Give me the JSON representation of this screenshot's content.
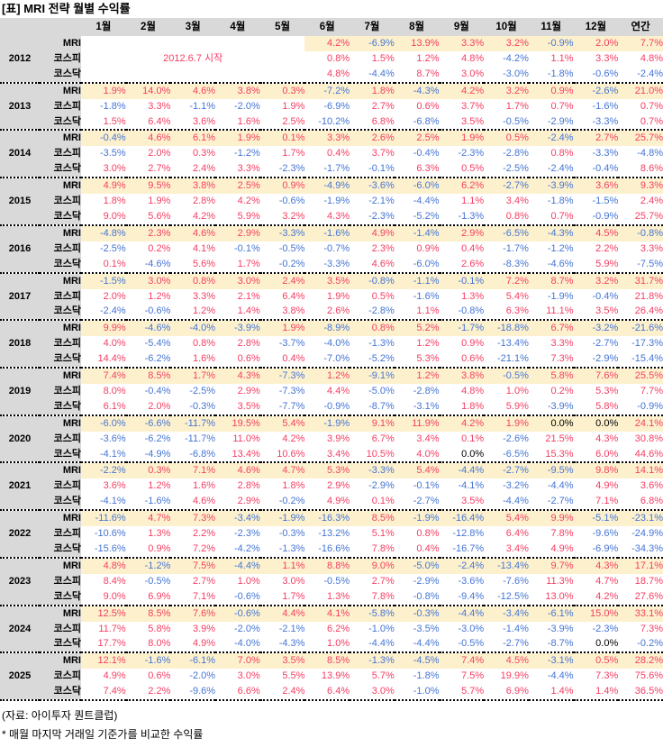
{
  "title": "[표] MRI 전략 월별 수익률",
  "colors": {
    "positive": "#f53e63",
    "negative": "#4575d5",
    "zero": "#000000",
    "header_bg": "#d9d9d9",
    "mri_row_bg": "#fdf1cd"
  },
  "footer": {
    "source": "(자료: 아이투자 퀀트클럽)",
    "note": "* 매월 마지막 거래일 기준가를 비교한 수익률"
  },
  "chart_data": {
    "type": "table",
    "title": "[표] MRI 전략 월별 수익률",
    "columns": [
      "1월",
      "2월",
      "3월",
      "4월",
      "5월",
      "6월",
      "7월",
      "8월",
      "9월",
      "10월",
      "11월",
      "12월",
      "연간"
    ],
    "row_labels": [
      "MRI",
      "코스피",
      "코스닥"
    ],
    "start_note": "2012.6.7 시작",
    "years": [
      {
        "year": "2012",
        "rows": [
          {
            "label": "MRI",
            "values": [
              "",
              "",
              "",
              "",
              "",
              "4.2%",
              "-6.9%",
              "13.9%",
              "3.3%",
              "3.2%",
              "-0.9%",
              "2.0%",
              "7.7%"
            ]
          },
          {
            "label": "코스피",
            "start_note": {
              "text": "2012.6.7 시작",
              "span": 5
            },
            "values": [
              "",
              "",
              "",
              "",
              "",
              "0.8%",
              "1.5%",
              "1.2%",
              "4.8%",
              "-4.2%",
              "1.1%",
              "3.3%",
              "4.8%"
            ]
          },
          {
            "label": "코스닥",
            "values": [
              "",
              "",
              "",
              "",
              "",
              "4.8%",
              "-4.4%",
              "8.7%",
              "3.0%",
              "-3.0%",
              "-1.8%",
              "-0.6%",
              "-2.4%"
            ]
          }
        ]
      },
      {
        "year": "2013",
        "rows": [
          {
            "label": "MRI",
            "values": [
              "1.9%",
              "14.0%",
              "4.6%",
              "3.8%",
              "0.3%",
              "-7.2%",
              "1.8%",
              "-4.3%",
              "4.2%",
              "3.2%",
              "0.9%",
              "-2.6%",
              "21.0%"
            ]
          },
          {
            "label": "코스피",
            "values": [
              "-1.8%",
              "3.3%",
              "-1.1%",
              "-2.0%",
              "1.9%",
              "-6.9%",
              "2.7%",
              "0.6%",
              "3.7%",
              "1.7%",
              "0.7%",
              "-1.6%",
              "0.7%"
            ]
          },
          {
            "label": "코스닥",
            "values": [
              "1.5%",
              "6.4%",
              "3.6%",
              "1.6%",
              "2.5%",
              "-10.2%",
              "6.8%",
              "-6.8%",
              "3.5%",
              "-0.5%",
              "-2.9%",
              "-3.3%",
              "0.7%"
            ]
          }
        ]
      },
      {
        "year": "2014",
        "rows": [
          {
            "label": "MRI",
            "values": [
              "-0.4%",
              "4.6%",
              "6.1%",
              "1.9%",
              "0.1%",
              "3.3%",
              "2.6%",
              "2.5%",
              "1.9%",
              "0.5%",
              "-2.4%",
              "2.7%",
              "25.7%"
            ]
          },
          {
            "label": "코스피",
            "values": [
              "-3.5%",
              "2.0%",
              "0.3%",
              "-1.2%",
              "1.7%",
              "0.4%",
              "3.7%",
              "-0.4%",
              "-2.3%",
              "-2.8%",
              "0.8%",
              "-3.3%",
              "-4.8%"
            ]
          },
          {
            "label": "코스닥",
            "values": [
              "3.0%",
              "2.7%",
              "2.4%",
              "3.3%",
              "-2.3%",
              "-1.7%",
              "-0.1%",
              "6.3%",
              "0.5%",
              "-2.5%",
              "-2.4%",
              "-0.4%",
              "8.6%"
            ]
          }
        ]
      },
      {
        "year": "2015",
        "rows": [
          {
            "label": "MRI",
            "values": [
              "4.9%",
              "9.5%",
              "3.8%",
              "2.5%",
              "0.9%",
              "-4.9%",
              "-3.6%",
              "-6.0%",
              "6.2%",
              "-2.7%",
              "-3.9%",
              "3.6%",
              "9.3%"
            ]
          },
          {
            "label": "코스피",
            "values": [
              "1.8%",
              "1.9%",
              "2.8%",
              "4.2%",
              "-0.6%",
              "-1.9%",
              "-2.1%",
              "-4.4%",
              "1.1%",
              "3.4%",
              "-1.8%",
              "-1.5%",
              "2.4%"
            ]
          },
          {
            "label": "코스닥",
            "values": [
              "9.0%",
              "5.6%",
              "4.2%",
              "5.9%",
              "3.2%",
              "4.3%",
              "-2.3%",
              "-5.2%",
              "-1.3%",
              "0.8%",
              "0.7%",
              "-0.9%",
              "25.7%"
            ]
          }
        ]
      },
      {
        "year": "2016",
        "rows": [
          {
            "label": "MRI",
            "values": [
              "-4.8%",
              "2.3%",
              "4.6%",
              "2.9%",
              "-3.3%",
              "-1.6%",
              "4.9%",
              "-1.4%",
              "2.9%",
              "-6.5%",
              "-4.3%",
              "4.5%",
              "-0.8%"
            ]
          },
          {
            "label": "코스피",
            "values": [
              "-2.5%",
              "0.2%",
              "4.1%",
              "-0.1%",
              "-0.5%",
              "-0.7%",
              "2.3%",
              "0.9%",
              "0.4%",
              "-1.7%",
              "-1.2%",
              "2.2%",
              "3.3%"
            ]
          },
          {
            "label": "코스닥",
            "values": [
              "0.1%",
              "-4.6%",
              "5.6%",
              "1.7%",
              "-0.2%",
              "-3.3%",
              "4.6%",
              "-6.0%",
              "2.6%",
              "-8.3%",
              "-4.6%",
              "5.9%",
              "-7.5%"
            ]
          }
        ]
      },
      {
        "year": "2017",
        "rows": [
          {
            "label": "MRI",
            "values": [
              "-1.5%",
              "3.0%",
              "0.8%",
              "3.0%",
              "2.4%",
              "3.5%",
              "-0.8%",
              "-1.1%",
              "-0.1%",
              "7.2%",
              "8.7%",
              "3.2%",
              "31.7%"
            ]
          },
          {
            "label": "코스피",
            "values": [
              "2.0%",
              "1.2%",
              "3.3%",
              "2.1%",
              "6.4%",
              "1.9%",
              "0.5%",
              "-1.6%",
              "1.3%",
              "5.4%",
              "-1.9%",
              "-0.4%",
              "21.8%"
            ]
          },
          {
            "label": "코스닥",
            "values": [
              "-2.4%",
              "-0.6%",
              "1.2%",
              "1.4%",
              "3.8%",
              "2.6%",
              "-2.8%",
              "1.1%",
              "-0.8%",
              "6.3%",
              "11.1%",
              "3.5%",
              "26.4%"
            ]
          }
        ]
      },
      {
        "year": "2018",
        "rows": [
          {
            "label": "MRI",
            "values": [
              "9.9%",
              "-4.6%",
              "-4.0%",
              "-3.9%",
              "1.9%",
              "-8.9%",
              "0.8%",
              "5.2%",
              "-1.7%",
              "-18.8%",
              "6.7%",
              "-3.2%",
              "-21.6%"
            ]
          },
          {
            "label": "코스피",
            "values": [
              "4.0%",
              "-5.4%",
              "0.8%",
              "2.8%",
              "-3.7%",
              "-4.0%",
              "-1.3%",
              "1.2%",
              "0.9%",
              "-13.4%",
              "3.3%",
              "-2.7%",
              "-17.3%"
            ]
          },
          {
            "label": "코스닥",
            "values": [
              "14.4%",
              "-6.2%",
              "1.6%",
              "0.6%",
              "0.4%",
              "-7.0%",
              "-5.2%",
              "5.3%",
              "0.6%",
              "-21.1%",
              "7.3%",
              "-2.9%",
              "-15.4%"
            ]
          }
        ]
      },
      {
        "year": "2019",
        "rows": [
          {
            "label": "MRI",
            "values": [
              "7.4%",
              "8.5%",
              "1.7%",
              "4.3%",
              "-7.3%",
              "1.2%",
              "-9.1%",
              "1.2%",
              "3.8%",
              "-0.5%",
              "5.8%",
              "7.6%",
              "25.5%"
            ]
          },
          {
            "label": "코스피",
            "values": [
              "8.0%",
              "-0.4%",
              "-2.5%",
              "2.9%",
              "-7.3%",
              "4.4%",
              "-5.0%",
              "-2.8%",
              "4.8%",
              "1.0%",
              "0.2%",
              "5.3%",
              "7.7%"
            ]
          },
          {
            "label": "코스닥",
            "values": [
              "6.1%",
              "2.0%",
              "-0.3%",
              "3.5%",
              "-7.7%",
              "-0.9%",
              "-8.7%",
              "-3.1%",
              "1.8%",
              "5.9%",
              "-3.9%",
              "5.8%",
              "-0.9%"
            ]
          }
        ]
      },
      {
        "year": "2020",
        "rows": [
          {
            "label": "MRI",
            "values": [
              "-6.0%",
              "-6.6%",
              "-11.7%",
              "19.5%",
              "5.4%",
              "-1.9%",
              "9.1%",
              "11.9%",
              "4.2%",
              "1.9%",
              "0.0%",
              "0.0%",
              "24.1%"
            ]
          },
          {
            "label": "코스피",
            "values": [
              "-3.6%",
              "-6.2%",
              "-11.7%",
              "11.0%",
              "4.2%",
              "3.9%",
              "6.7%",
              "3.4%",
              "0.1%",
              "-2.6%",
              "21.5%",
              "4.3%",
              "30.8%"
            ]
          },
          {
            "label": "코스닥",
            "values": [
              "-4.1%",
              "-4.9%",
              "-6.8%",
              "13.4%",
              "10.6%",
              "3.4%",
              "10.5%",
              "4.0%",
              "0.0%",
              "-6.5%",
              "15.3%",
              "6.0%",
              "44.6%"
            ]
          }
        ]
      },
      {
        "year": "2021",
        "rows": [
          {
            "label": "MRI",
            "values": [
              "-2.2%",
              "0.3%",
              "7.1%",
              "4.6%",
              "4.7%",
              "5.3%",
              "-3.3%",
              "5.4%",
              "-4.4%",
              "-2.7%",
              "-9.5%",
              "9.8%",
              "14.1%"
            ]
          },
          {
            "label": "코스피",
            "values": [
              "3.6%",
              "1.2%",
              "1.6%",
              "2.8%",
              "1.8%",
              "2.9%",
              "-2.9%",
              "-0.1%",
              "-4.1%",
              "-3.2%",
              "-4.4%",
              "4.9%",
              "3.6%"
            ]
          },
          {
            "label": "코스닥",
            "values": [
              "-4.1%",
              "-1.6%",
              "4.6%",
              "2.9%",
              "-0.2%",
              "4.9%",
              "0.1%",
              "-2.7%",
              "3.5%",
              "-4.4%",
              "-2.7%",
              "7.1%",
              "6.8%"
            ]
          }
        ]
      },
      {
        "year": "2022",
        "rows": [
          {
            "label": "MRI",
            "values": [
              "-11.6%",
              "4.7%",
              "7.3%",
              "-3.4%",
              "-1.9%",
              "-16.3%",
              "8.5%",
              "-1.9%",
              "-16.4%",
              "5.4%",
              "9.9%",
              "-5.1%",
              "-23.1%"
            ]
          },
          {
            "label": "코스피",
            "values": [
              "-10.6%",
              "1.3%",
              "2.2%",
              "-2.3%",
              "-0.3%",
              "-13.2%",
              "5.1%",
              "0.8%",
              "-12.8%",
              "6.4%",
              "7.8%",
              "-9.6%",
              "-24.9%"
            ]
          },
          {
            "label": "코스닥",
            "values": [
              "-15.6%",
              "0.9%",
              "7.2%",
              "-4.2%",
              "-1.3%",
              "-16.6%",
              "7.8%",
              "0.4%",
              "-16.7%",
              "3.4%",
              "4.9%",
              "-6.9%",
              "-34.3%"
            ]
          }
        ]
      },
      {
        "year": "2023",
        "rows": [
          {
            "label": "MRI",
            "values": [
              "4.8%",
              "-1.2%",
              "7.5%",
              "-4.4%",
              "1.1%",
              "8.8%",
              "9.0%",
              "-5.0%",
              "-2.4%",
              "-13.4%",
              "9.7%",
              "4.3%",
              "17.1%"
            ]
          },
          {
            "label": "코스피",
            "values": [
              "8.4%",
              "-0.5%",
              "2.7%",
              "1.0%",
              "3.0%",
              "-0.5%",
              "2.7%",
              "-2.9%",
              "-3.6%",
              "-7.6%",
              "11.3%",
              "4.7%",
              "18.7%"
            ]
          },
          {
            "label": "코스닥",
            "values": [
              "9.0%",
              "6.9%",
              "7.1%",
              "-0.6%",
              "1.7%",
              "1.3%",
              "7.8%",
              "-0.8%",
              "-9.4%",
              "-12.5%",
              "13.0%",
              "4.2%",
              "27.6%"
            ]
          }
        ]
      },
      {
        "year": "2024",
        "rows": [
          {
            "label": "MRI",
            "values": [
              "12.5%",
              "8.5%",
              "7.6%",
              "-0.6%",
              "4.4%",
              "4.1%",
              "-5.8%",
              "-0.3%",
              "-4.4%",
              "-3.4%",
              "-6.1%",
              "15.0%",
              "33.1%"
            ]
          },
          {
            "label": "코스피",
            "values": [
              "11.7%",
              "5.8%",
              "3.9%",
              "-2.0%",
              "-2.1%",
              "6.2%",
              "-1.0%",
              "-3.5%",
              "-3.0%",
              "-1.4%",
              "-3.9%",
              "-2.3%",
              "7.3%"
            ]
          },
          {
            "label": "코스닥",
            "values": [
              "17.7%",
              "8.0%",
              "4.9%",
              "-4.0%",
              "-4.3%",
              "1.0%",
              "-4.4%",
              "-4.4%",
              "-0.5%",
              "-2.7%",
              "-8.7%",
              "0.0%",
              "-0.2%"
            ]
          }
        ]
      },
      {
        "year": "2025",
        "rows": [
          {
            "label": "MRI",
            "values": [
              "12.1%",
              "-1.6%",
              "-6.1%",
              "7.0%",
              "3.5%",
              "8.5%",
              "-1.3%",
              "-4.5%",
              "7.4%",
              "4.5%",
              "-3.1%",
              "0.5%",
              "28.2%"
            ]
          },
          {
            "label": "코스피",
            "values": [
              "4.9%",
              "0.6%",
              "-2.0%",
              "3.0%",
              "5.5%",
              "13.9%",
              "5.7%",
              "-1.8%",
              "7.5%",
              "19.9%",
              "-4.4%",
              "7.3%",
              "75.6%"
            ]
          },
          {
            "label": "코스닥",
            "values": [
              "7.4%",
              "2.2%",
              "-9.6%",
              "6.6%",
              "2.4%",
              "6.4%",
              "3.0%",
              "-1.0%",
              "5.7%",
              "6.9%",
              "1.4%",
              "1.4%",
              "36.5%"
            ]
          }
        ]
      }
    ]
  }
}
